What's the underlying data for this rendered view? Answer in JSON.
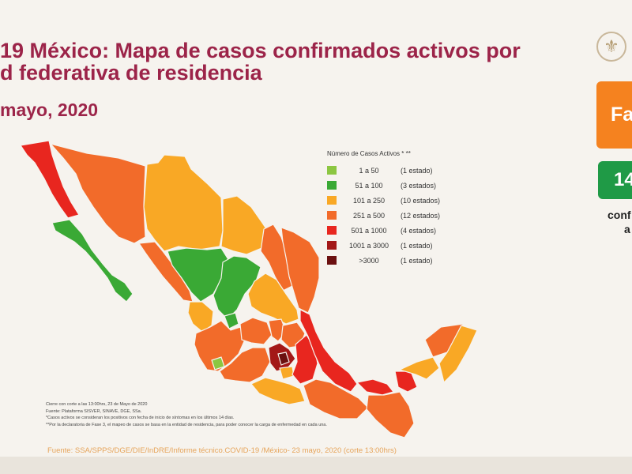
{
  "title": {
    "line1": "19 México: Mapa de casos confirmados activos por",
    "line2": "d federativa de residencia",
    "date": "mayo, 2020"
  },
  "side_panel": {
    "phase_text": "Fa",
    "count_text": "14",
    "count_sub1": "conf",
    "count_sub2": "a"
  },
  "legend": {
    "title": "Número de Casos Activos * **",
    "items": [
      {
        "range": "1 a 50",
        "count": "(1 estado)",
        "color": "#8cc641"
      },
      {
        "range": "51 a 100",
        "count": "(3 estados)",
        "color": "#3aa935"
      },
      {
        "range": "101 a 250",
        "count": "(10 estados)",
        "color": "#f9a825"
      },
      {
        "range": "251 a 500",
        "count": "(12 estados)",
        "color": "#f26b2a"
      },
      {
        "range": "501 a 1000",
        "count": "(4 estados)",
        "color": "#e8261f"
      },
      {
        "range": "1001 a 3000",
        "count": "(1 estado)",
        "color": "#a31818"
      },
      {
        "range": ">3000",
        "count": "(1 estado)",
        "color": "#6b1010"
      }
    ]
  },
  "notes": [
    "Cierre con corte a las 13:00hrs, 23 de Mayo de 2020",
    "Fuente: Plataforma SISVER, SINAVE, DGE, SSa.",
    "*Casos activos se consideran los positivos con fecha de inicio de síntomas en los últimos 14 días.",
    "**Por la declaratoria de Fase 3, el mapeo de casos se basa en la entidad de residencia, para poder conocer la carga de enfermedad en cada una."
  ],
  "source": "Fuente: SSA/SPPS/DGE/DIE/InDRE/Informe técnico.COVID-19 /México- 23 mayo, 2020 (corte 13:00hrs)"
}
